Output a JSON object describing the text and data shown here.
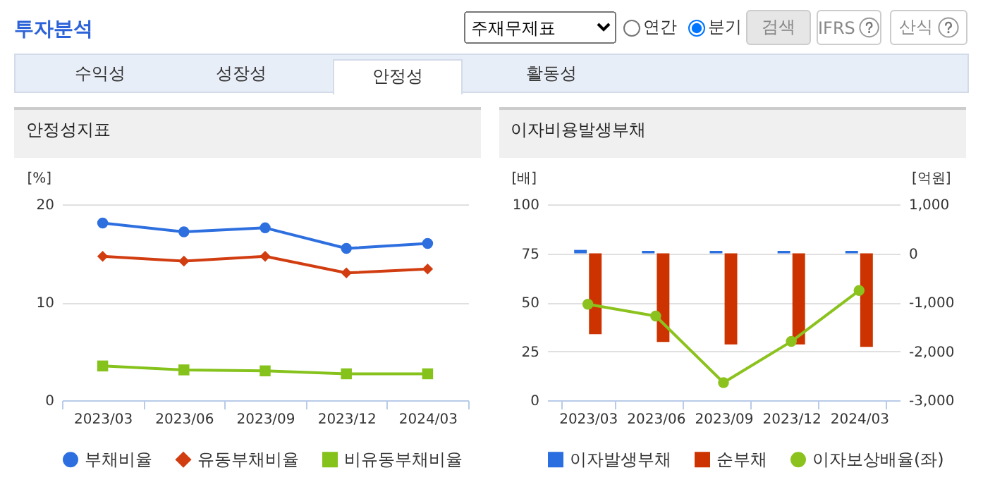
{
  "chart_data": [
    {
      "type": "other",
      "title": "투자분석",
      "annotations": [
        "주재무제표",
        "연간",
        "분기",
        "검색",
        "IFRS",
        "산식",
        "수익성",
        "성장성",
        "안정성",
        "활동성"
      ]
    },
    {
      "type": "line",
      "title": "안정성지표",
      "ylabel": "[%]",
      "categories": [
        "2023/03",
        "2023/06",
        "2023/09",
        "2023/12",
        "2024/03"
      ],
      "ylim": [
        0,
        20
      ],
      "yticks": [
        0,
        10,
        20
      ],
      "grid": "y",
      "legend": "bottom",
      "series": [
        {
          "name": "부채비율",
          "color": "#2e6fe0",
          "marker": "circle",
          "values": [
            18.1,
            17.2,
            17.6,
            15.5,
            16.0
          ]
        },
        {
          "name": "유동부채비율",
          "color": "#d13d10",
          "marker": "diamond",
          "values": [
            14.7,
            14.2,
            14.7,
            13.0,
            13.4
          ]
        },
        {
          "name": "비유동부채비율",
          "color": "#85c21b",
          "marker": "square",
          "values": [
            3.5,
            3.1,
            3.0,
            2.7,
            2.7
          ]
        }
      ]
    },
    {
      "type": "bar",
      "title": "이자비용발생부채",
      "ylabel": "[배]",
      "y2label": "[억원]",
      "categories": [
        "2023/03",
        "2023/06",
        "2023/09",
        "2023/12",
        "2024/03"
      ],
      "ylim": [
        0,
        100
      ],
      "yticks": [
        0,
        25,
        50,
        75,
        100
      ],
      "y2lim": [
        -3000,
        1000
      ],
      "y2ticks": [
        {
          "value": 1000,
          "label": "1,000"
        },
        0,
        {
          "value": -1000,
          "label": "-1,000"
        },
        {
          "value": -2000,
          "label": "-2,000"
        },
        {
          "value": -3000,
          "label": "-3,000"
        }
      ],
      "grid": "y",
      "legend": "bottom",
      "series": [
        {
          "name": "이자발생부채",
          "color": "#2a6ee0",
          "axis": "y2",
          "values": [
            70,
            50,
            50,
            50,
            50
          ]
        },
        {
          "name": "순부채",
          "color": "#cc3300",
          "axis": "y2",
          "values": [
            -1650,
            -1810,
            -1860,
            -1860,
            -1910
          ]
        },
        {
          "name": "이자보상배율(좌)",
          "type": "line",
          "marker": "circle",
          "color": "#8cc21e",
          "axis": "y",
          "values": [
            49,
            43,
            9,
            30,
            56
          ]
        }
      ]
    }
  ]
}
